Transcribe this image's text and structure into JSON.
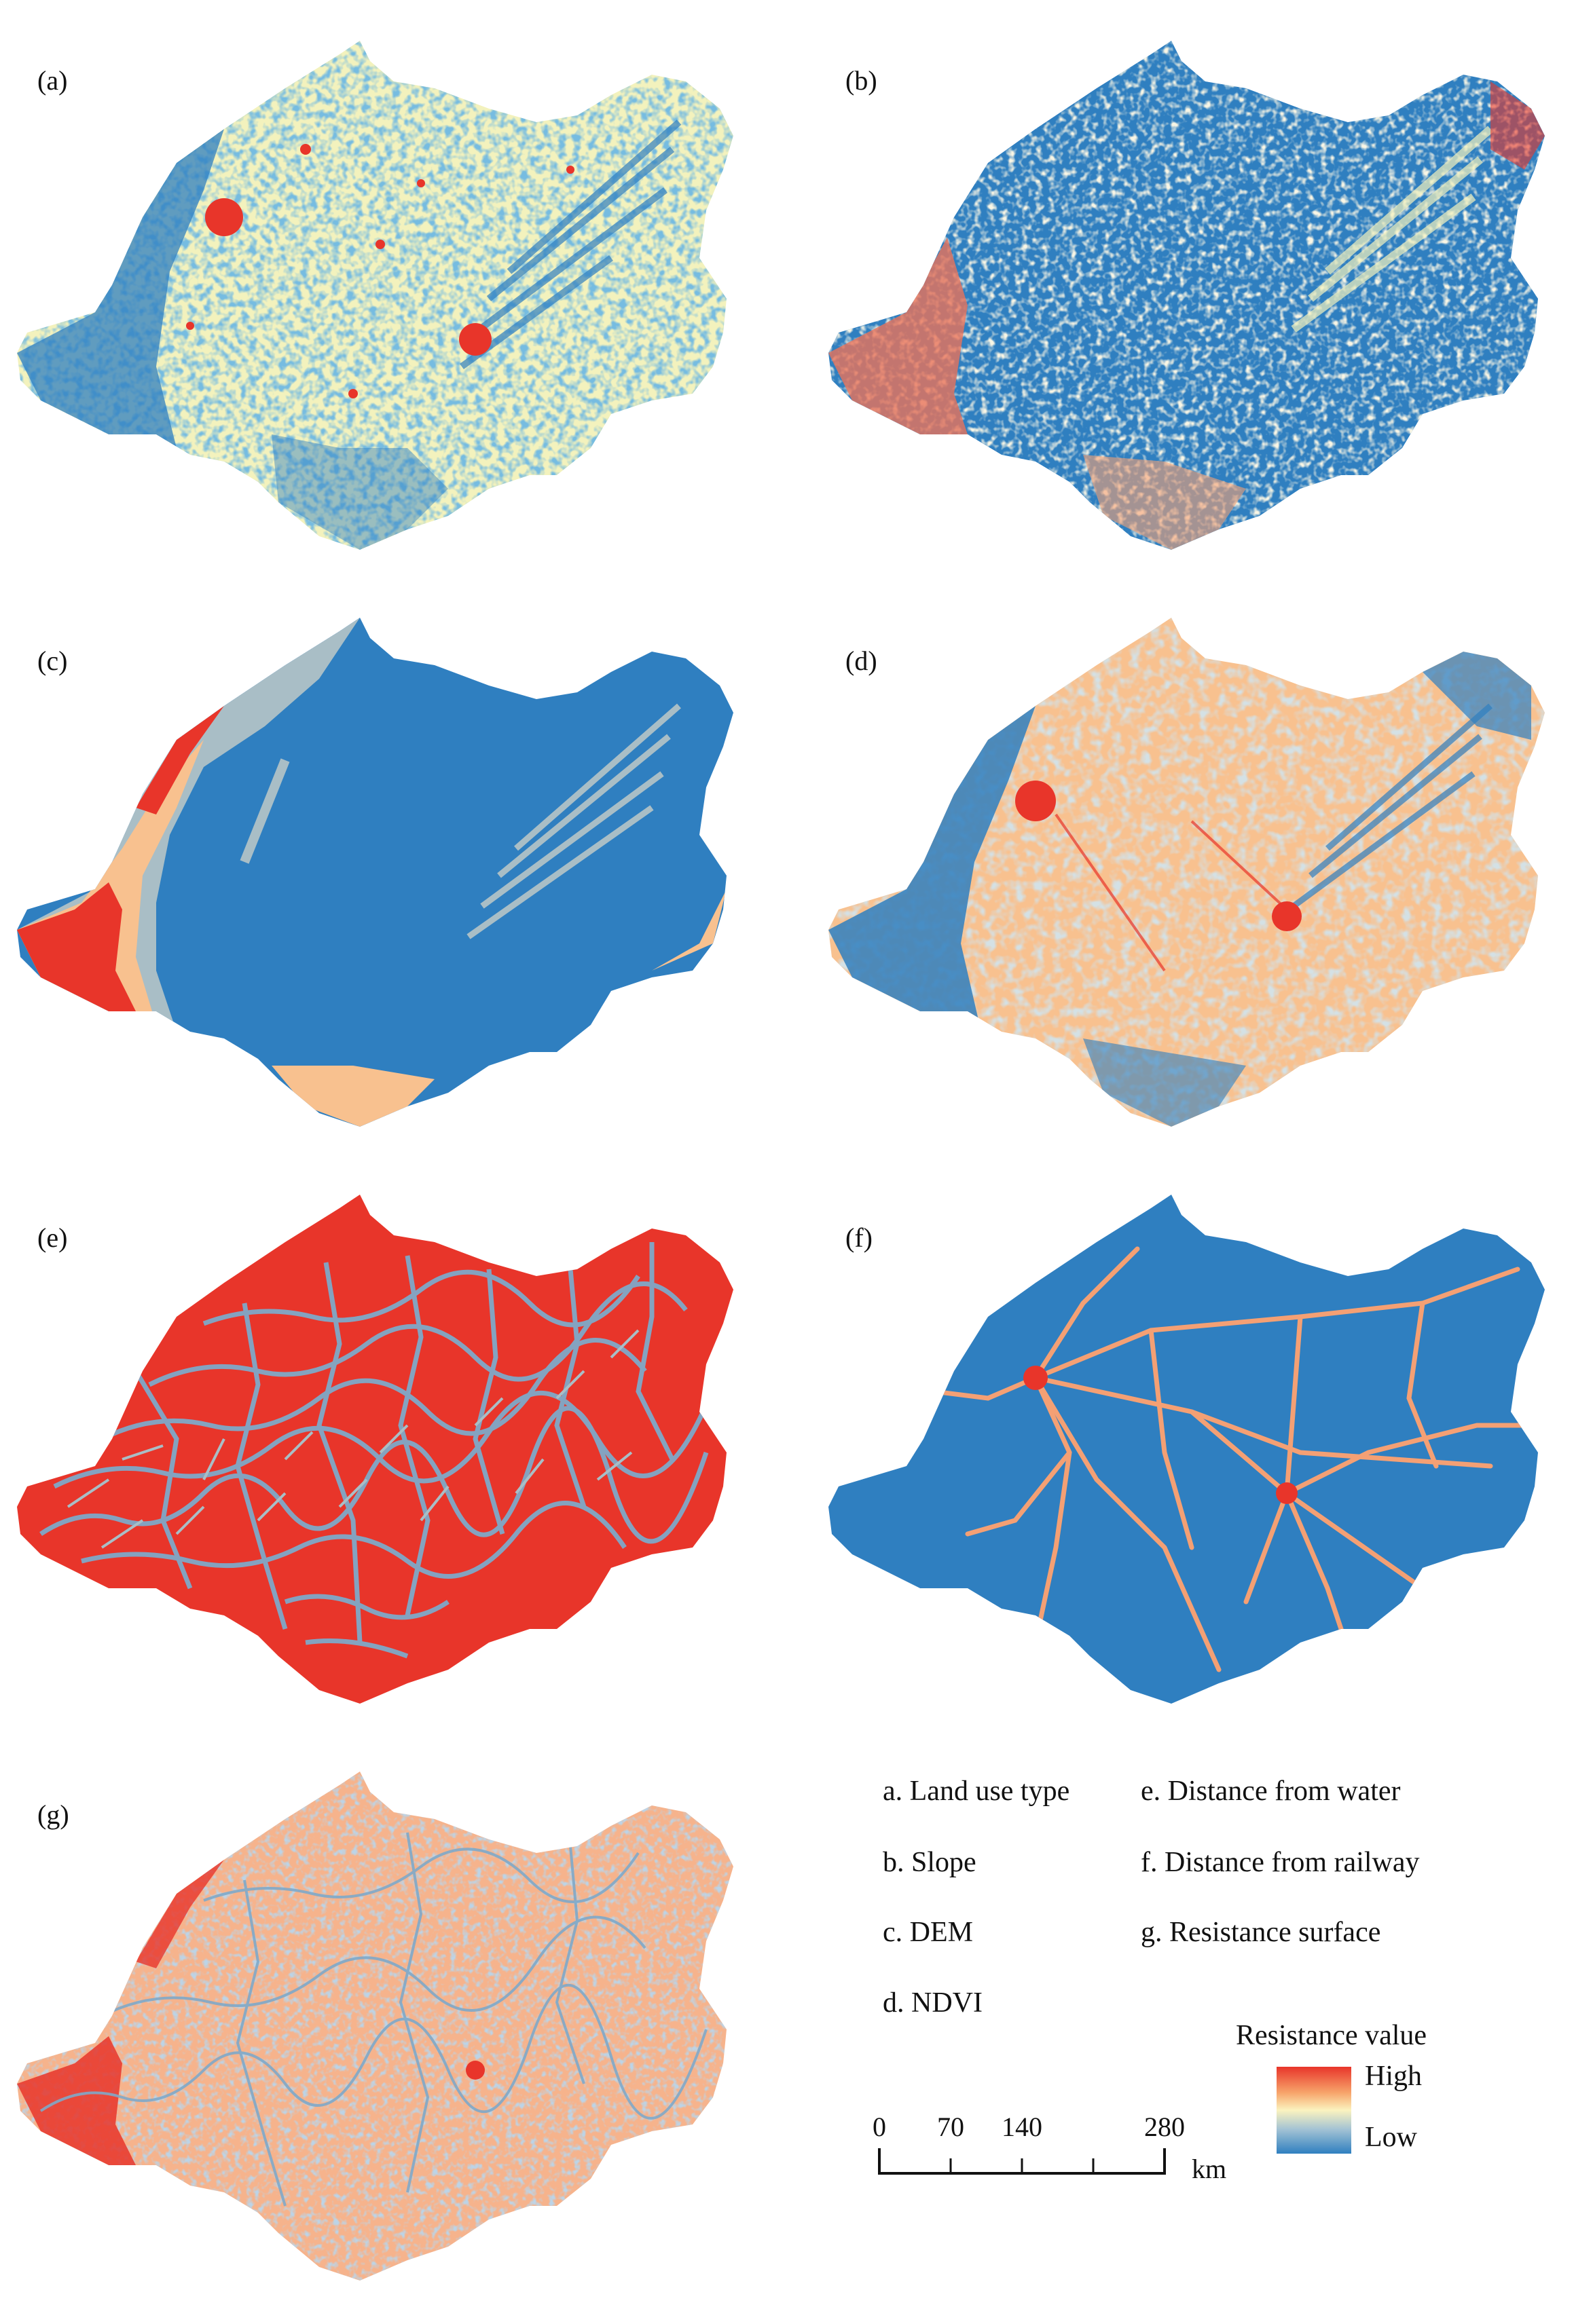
{
  "panels": [
    {
      "label": "(a)",
      "theme": "land-use"
    },
    {
      "label": "(b)",
      "theme": "slope"
    },
    {
      "label": "(c)",
      "theme": "dem"
    },
    {
      "label": "(d)",
      "theme": "ndvi"
    },
    {
      "label": "(e)",
      "theme": "water"
    },
    {
      "label": "(f)",
      "theme": "railway"
    },
    {
      "label": "(g)",
      "theme": "resistance"
    }
  ],
  "key": [
    {
      "text": "a. Land use type"
    },
    {
      "text": "b. Slope"
    },
    {
      "text": "c. DEM"
    },
    {
      "text": "d. NDVI"
    },
    {
      "text": "e. Distance from water"
    },
    {
      "text": "f. Distance from railway"
    },
    {
      "text": "g. Resistance surface"
    }
  ],
  "legend": {
    "title": "Resistance value",
    "high_label": "High",
    "low_label": "Low",
    "colors": {
      "high": "#e8352a",
      "mid_high": "#f7a56b",
      "mid": "#fbf3bf",
      "mid_low": "#a3c3d4",
      "low": "#2f7fc0"
    }
  },
  "scale_bar": {
    "ticks": [
      "0",
      "70",
      "140",
      "280"
    ],
    "unit": "km"
  },
  "colors": {
    "blue": "#2f7fc0",
    "red": "#e8352a",
    "pale_yellow": "#f3f2bd",
    "grey_blue": "#a9bec6",
    "peach": "#f8c18f",
    "salmon": "#f4a074",
    "light_blue": "#7fa9c9"
  }
}
